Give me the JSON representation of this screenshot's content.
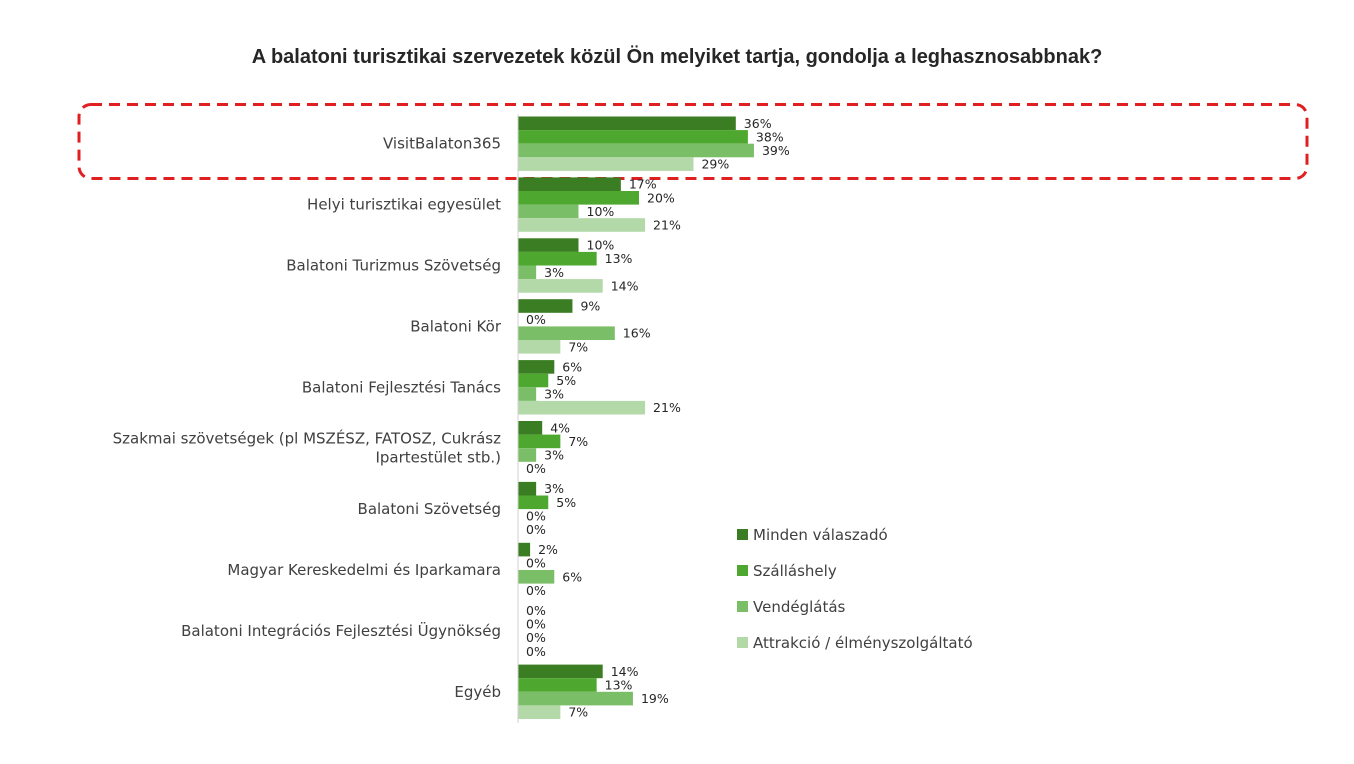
{
  "chart_data": {
    "type": "bar",
    "orientation": "horizontal",
    "title": "A balatoni turisztikai szervezetek közül Ön melyiket tartja, gondolja a leghasznosabbnak?",
    "categories": [
      [
        "VisitBalaton365"
      ],
      [
        "Helyi turisztikai egyesület"
      ],
      [
        "Balatoni Turizmus Szövetség"
      ],
      [
        "Balatoni Kör"
      ],
      [
        "Balatoni Fejlesztési Tanács"
      ],
      [
        "Szakmai szövetségek (pl MSZÉSZ, FATOSZ, Cukrász",
        "Ipartestület stb.)"
      ],
      [
        "Balatoni Szövetség"
      ],
      [
        "Magyar Kereskedelmi és Iparkamara"
      ],
      [
        "Balatoni Integrációs Fejlesztési Ügynökség"
      ],
      [
        "Egyéb"
      ]
    ],
    "series": [
      {
        "name": "Minden válaszadó",
        "color": "#3a7d22",
        "values": [
          36,
          17,
          10,
          9,
          6,
          4,
          3,
          2,
          0,
          14
        ]
      },
      {
        "name": "Szálláshely",
        "color": "#4ea72e",
        "values": [
          38,
          20,
          13,
          0,
          5,
          7,
          5,
          0,
          0,
          13
        ]
      },
      {
        "name": "Vendéglátás",
        "color": "#7bbe68",
        "values": [
          39,
          10,
          3,
          16,
          3,
          3,
          0,
          6,
          0,
          19
        ]
      },
      {
        "name": "Attrakció / élményszolgáltató",
        "color": "#b4d9a9",
        "values": [
          29,
          21,
          14,
          7,
          21,
          0,
          0,
          0,
          0,
          7
        ]
      }
    ],
    "value_suffix": "%",
    "xlim": [
      0,
      100
    ],
    "grid": false,
    "legend_position": "right",
    "highlight_category_index": 0,
    "highlight_color": "#e02020"
  }
}
